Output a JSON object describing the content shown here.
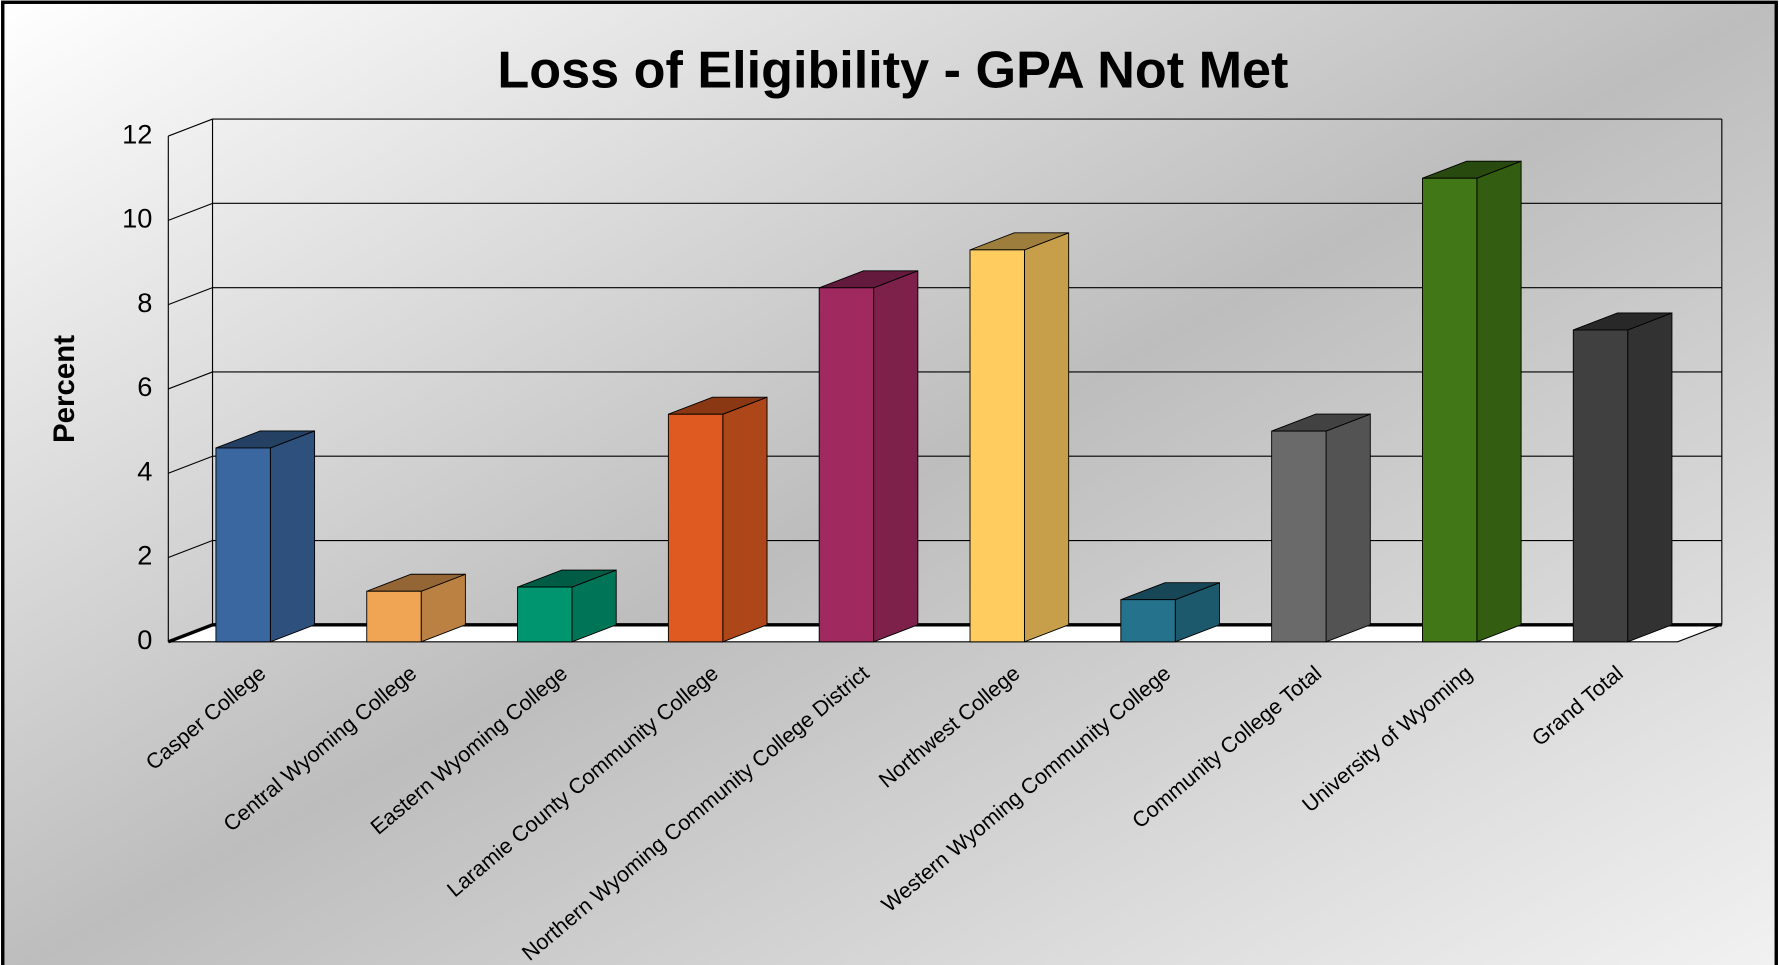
{
  "chart_data": {
    "type": "bar3d",
    "title": "Loss of Eligibility - GPA Not Met",
    "y_label": "Percent",
    "categories": [
      "Casper College",
      "Central Wyoming College",
      "Eastern Wyoming College",
      "Laramie County Community College",
      "Northern Wyoming Community College District",
      "Northwest College",
      "Western Wyoming Community College",
      "Community College Total",
      "University of Wyoming",
      "Grand Total"
    ],
    "values": [
      4.6,
      1.2,
      1.3,
      5.4,
      8.4,
      9.3,
      1.0,
      5.0,
      11.0,
      7.4
    ],
    "colors": [
      "#3a67a0",
      "#f0a555",
      "#00956e",
      "#de5a20",
      "#a02a60",
      "#ffcc60",
      "#25728c",
      "#6a6a6a",
      "#417716",
      "#404040"
    ],
    "ylim": [
      0,
      12
    ],
    "yticks": [
      0,
      2,
      4,
      6,
      8,
      10,
      12
    ],
    "grid": true
  }
}
